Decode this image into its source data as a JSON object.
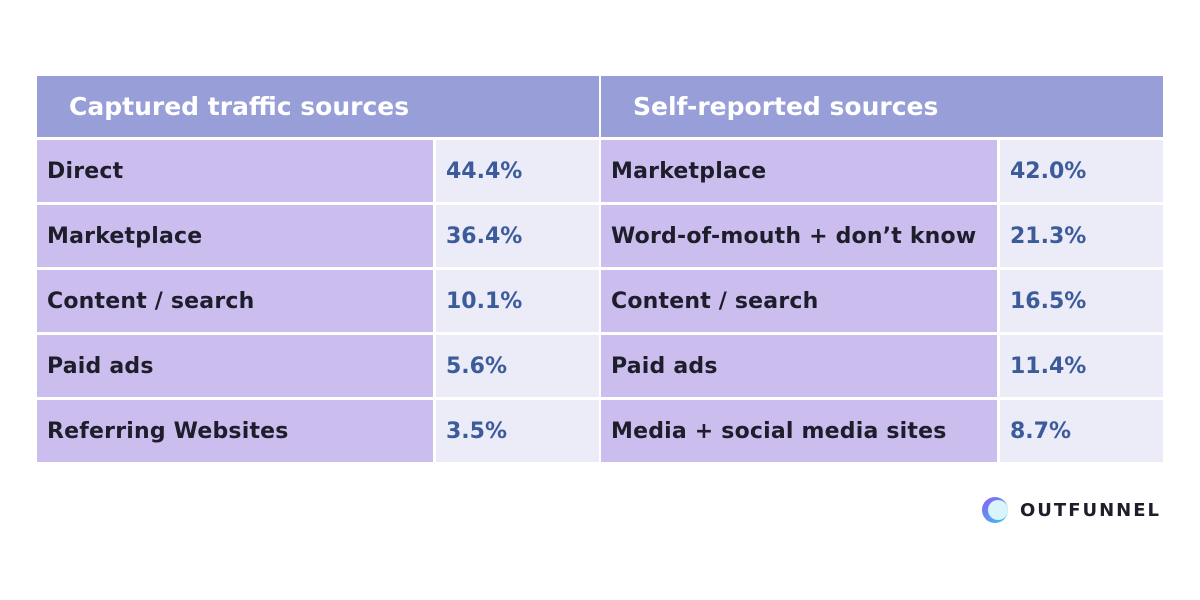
{
  "tables": [
    {
      "header": "Captured traffic sources",
      "rows": [
        [
          "Direct",
          "44.4%"
        ],
        [
          "Marketplace",
          "36.4%"
        ],
        [
          "Content / search",
          "10.1%"
        ],
        [
          "Paid ads",
          "5.6%"
        ],
        [
          "Referring Websites",
          "3.5%"
        ]
      ]
    },
    {
      "header": "Self-reported sources",
      "rows": [
        [
          "Marketplace",
          "42.0%"
        ],
        [
          "Word-of-mouth + don’t know",
          "21.3%"
        ],
        [
          "Content / search",
          "16.5%"
        ],
        [
          "Paid ads",
          "11.4%"
        ],
        [
          "Media + social media sites",
          "8.7%"
        ]
      ]
    }
  ],
  "brand": "OUTFUNNEL"
}
